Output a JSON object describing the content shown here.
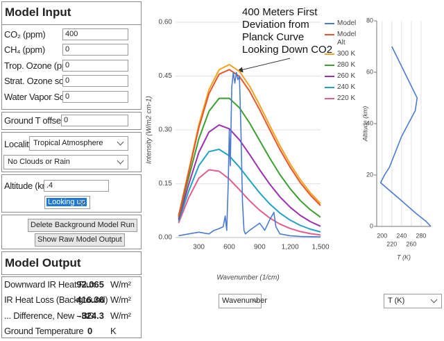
{
  "model_input": {
    "title": "Model Input",
    "fields": [
      {
        "label": "CO₂ (ppm)",
        "value": "400"
      },
      {
        "label": "CH₄ (ppm)",
        "value": "0"
      },
      {
        "label": "Trop. Ozone (ppb)",
        "value": "0"
      },
      {
        "label": "Strat. Ozone scale",
        "value": "0"
      },
      {
        "label": "Water Vapor Scale",
        "value": "0"
      }
    ],
    "ground_offset": {
      "label": "Ground T offset, C",
      "value": "0"
    },
    "locality": {
      "label": "Locality",
      "value": "Tropical Atmosphere"
    },
    "clouds": "No Clouds or Rain",
    "altitude": {
      "label": "Altitude (km)",
      "value": ".4",
      "view": "Looking up"
    },
    "buttons": [
      "Delete Background Model Run",
      "Show Raw Model Output"
    ]
  },
  "model_output": {
    "title": "Model Output",
    "rows": [
      {
        "label": "Downward IR Heat Flux",
        "value": 92.065,
        "unit": "W/m²"
      },
      {
        "label": "IR Heat Loss (Background)",
        "value": 416.36,
        "unit": "W/m²"
      },
      {
        "label": "... Difference, New - BG",
        "value": -324.3,
        "unit": "W/m²"
      },
      {
        "label": "Ground Temperature",
        "value": 0,
        "unit": "K"
      }
    ]
  },
  "controls": {
    "spectrum_axis": "Wavenumber",
    "profile_axis": "T (K)"
  },
  "chart_data": [
    {
      "type": "line",
      "annotation": [
        "400 Meters First",
        "Deviation from",
        "Planck Curve",
        "Looking Down CO2"
      ],
      "xlabel": "Wavenumber (1/cm)",
      "ylabel": "Intensity (W/m2 cm-1)",
      "xlim": [
        70,
        1500
      ],
      "ylim": [
        0,
        0.6
      ],
      "xticks": [
        300,
        600,
        900,
        {
          "value": 1200,
          "label": "1,200"
        },
        {
          "value": 1500,
          "label": "1,500"
        }
      ],
      "yticks": [
        {
          "value": 0,
          "label": "0.00"
        },
        {
          "value": 0.15,
          "label": "0.15"
        },
        {
          "value": 0.3,
          "label": "0.30"
        },
        {
          "value": 0.45,
          "label": "0.45"
        },
        {
          "value": 0.6,
          "label": "0.60"
        }
      ],
      "grid": "y",
      "legend": "right",
      "x": [
        100,
        200,
        300,
        400,
        500,
        600,
        700,
        800,
        900,
        1000,
        1100,
        1200,
        1300,
        1400,
        1500
      ],
      "series": [
        {
          "name": "Model",
          "color": "#4a7bd1",
          "x": [
            100,
            200,
            300,
            400,
            450,
            500,
            540,
            560,
            575,
            590,
            600,
            610,
            625,
            640,
            655,
            670,
            685,
            700,
            715,
            730,
            745,
            760,
            800,
            850,
            900,
            950,
            1000,
            1040,
            1060,
            1100,
            1200,
            1300,
            1500
          ],
          "values": [
            0.005,
            0.01,
            0.015,
            0.01,
            0.02,
            0.025,
            0.03,
            0.06,
            0.02,
            0.15,
            0.3,
            0.2,
            0.42,
            0.46,
            0.43,
            0.46,
            0.44,
            0.45,
            0.3,
            0.1,
            0.02,
            0.01,
            0.02,
            0.03,
            0.04,
            0.02,
            0.05,
            0.07,
            0.03,
            0.01,
            0.005,
            0.003,
            0.002
          ]
        },
        {
          "name": "Model Alt",
          "color": "#e8552a",
          "values": [
            0.059,
            0.182,
            0.306,
            0.401,
            0.455,
            0.468,
            0.449,
            0.408,
            0.356,
            0.3,
            0.245,
            0.196,
            0.153,
            0.118,
            0.089
          ]
        },
        {
          "name": "300 K",
          "color": "#f5a21f",
          "values": [
            0.0608,
            0.186,
            0.3141,
            0.4121,
            0.4676,
            0.4819,
            0.4631,
            0.4221,
            0.369,
            0.3118,
            0.256,
            0.2053,
            0.1614,
            0.1247,
            0.0949
          ]
        },
        {
          "name": "280 K",
          "color": "#38a02c",
          "values": [
            0.0557,
            0.1668,
            0.2751,
            0.3516,
            0.3879,
            0.388,
            0.3616,
            0.3193,
            0.2701,
            0.2209,
            0.1754,
            0.136,
            0.1032,
            0.0772,
            0.0567
          ]
        },
        {
          "name": "260 K",
          "color": "#9b2fae",
          "values": [
            0.0506,
            0.1478,
            0.2371,
            0.2939,
            0.3137,
            0.303,
            0.2724,
            0.2317,
            0.1888,
            0.1484,
            0.1134,
            0.0846,
            0.0617,
            0.0443,
            0.0314
          ]
        },
        {
          "name": "240 K",
          "color": "#1fa3c4",
          "values": [
            0.0456,
            0.1292,
            0.2004,
            0.2394,
            0.2458,
            0.2277,
            0.1961,
            0.1596,
            0.1243,
            0.0934,
            0.0682,
            0.0486,
            0.0339,
            0.0232,
            0.0157
          ]
        },
        {
          "name": "220 K",
          "color": "#e45c8c",
          "values": [
            0.0405,
            0.1109,
            0.1653,
            0.1888,
            0.1848,
            0.1629,
            0.1333,
            0.1026,
            0.076,
            0.0541,
            0.0374,
            0.0253,
            0.0167,
            0.0108,
            0.0069
          ]
        }
      ]
    },
    {
      "type": "line",
      "xlabel": "T (K)",
      "ylabel": "Altitude (km)",
      "xlim": [
        189,
        300
      ],
      "ylim": [
        0,
        80
      ],
      "xticks": [
        200,
        220,
        240,
        260,
        280
      ],
      "yticks": [
        0,
        20,
        40,
        60,
        80
      ],
      "grid": "x",
      "axis_lines": true,
      "series": [
        {
          "color": "#4a7bd1",
          "x": [
            300,
            290,
            270,
            240,
            197,
            205,
            215,
            240,
            268,
            272,
            220
          ],
          "values": [
            0,
            2,
            5,
            10,
            17,
            20,
            23,
            35,
            45,
            50,
            70
          ]
        }
      ]
    }
  ]
}
